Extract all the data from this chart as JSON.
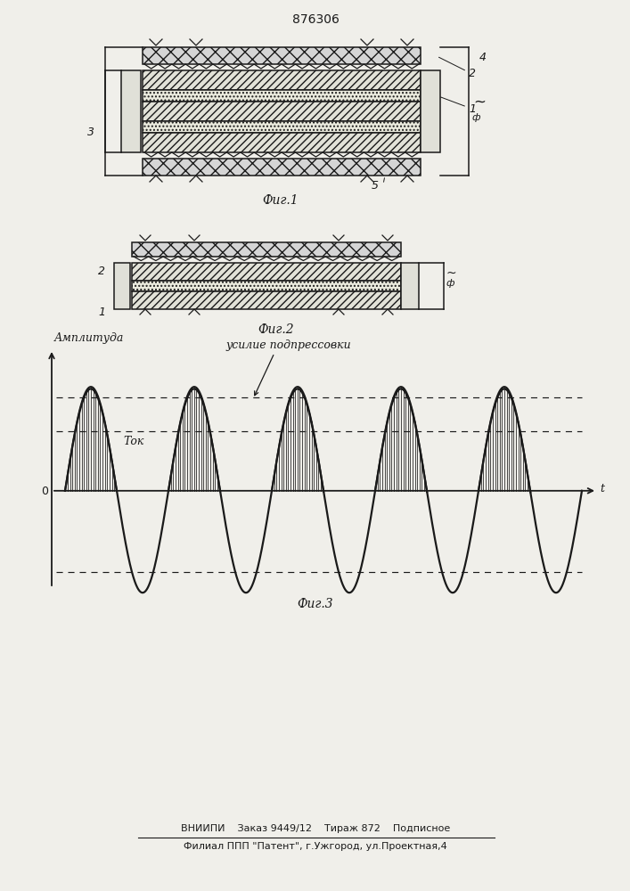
{
  "patent_number": "876306",
  "fig1_label": "Фиг.1",
  "fig2_label": "Фиг.2",
  "fig3_label": "Фиг.3",
  "footer_line1": "ВНИИПИ    Заказ 9449/12    Тираж 872    Подписное",
  "footer_line2": "Филиал ППП \"Патент\", г.Ужгород, ул.Проектная,4",
  "graph_ylabel": "Амплитуда",
  "graph_xlabel": "t",
  "graph_origin": "0",
  "graph_tok_label": "Ток",
  "graph_pressure_label": "усилие подпрессовки",
  "bg_color": "#f0efea",
  "line_color": "#1a1a1a",
  "label_2": "2",
  "label_1": "1",
  "label_3": "3",
  "label_4": "4",
  "label_5": "5"
}
